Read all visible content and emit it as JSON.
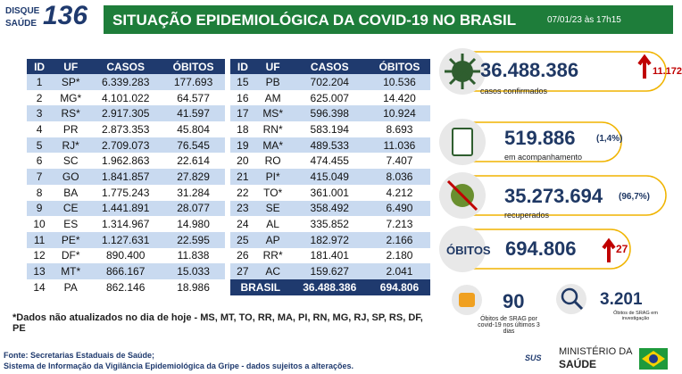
{
  "header": {
    "logo": {
      "line1": "DISQUE",
      "line2": "SAÚDE",
      "number": "136"
    },
    "title": "SITUAÇÃO EPIDEMIOLÓGICA DA COVID-19 NO BRASIL",
    "date": "07/01/23 às 17h15"
  },
  "table": {
    "headers": [
      "ID",
      "UF",
      "CASOS",
      "ÓBITOS"
    ],
    "rows_left": [
      [
        "1",
        "SP*",
        "6.339.283",
        "177.693"
      ],
      [
        "2",
        "MG*",
        "4.101.022",
        "64.577"
      ],
      [
        "3",
        "RS*",
        "2.917.305",
        "41.597"
      ],
      [
        "4",
        "PR",
        "2.873.353",
        "45.804"
      ],
      [
        "5",
        "RJ*",
        "2.709.073",
        "76.545"
      ],
      [
        "6",
        "SC",
        "1.962.863",
        "22.614"
      ],
      [
        "7",
        "GO",
        "1.841.857",
        "27.829"
      ],
      [
        "8",
        "BA",
        "1.775.243",
        "31.284"
      ],
      [
        "9",
        "CE",
        "1.441.891",
        "28.077"
      ],
      [
        "10",
        "ES",
        "1.314.967",
        "14.980"
      ],
      [
        "11",
        "PE*",
        "1.127.631",
        "22.595"
      ],
      [
        "12",
        "DF*",
        "890.400",
        "11.838"
      ],
      [
        "13",
        "MT*",
        "866.167",
        "15.033"
      ],
      [
        "14",
        "PA",
        "862.146",
        "18.986"
      ]
    ],
    "rows_right": [
      [
        "15",
        "PB",
        "702.204",
        "10.536"
      ],
      [
        "16",
        "AM",
        "625.007",
        "14.420"
      ],
      [
        "17",
        "MS*",
        "596.398",
        "10.924"
      ],
      [
        "18",
        "RN*",
        "583.194",
        "8.693"
      ],
      [
        "19",
        "MA*",
        "489.533",
        "11.036"
      ],
      [
        "20",
        "RO",
        "474.455",
        "7.407"
      ],
      [
        "21",
        "PI*",
        "415.049",
        "8.036"
      ],
      [
        "22",
        "TO*",
        "361.001",
        "4.212"
      ],
      [
        "23",
        "SE",
        "358.492",
        "6.490"
      ],
      [
        "24",
        "AL",
        "335.852",
        "7.213"
      ],
      [
        "25",
        "AP",
        "182.972",
        "2.166"
      ],
      [
        "26",
        "RR*",
        "181.401",
        "2.180"
      ],
      [
        "27",
        "AC",
        "159.627",
        "2.041"
      ]
    ],
    "total": [
      "BRASIL",
      "36.488.386",
      "694.806"
    ]
  },
  "stats": {
    "cases": {
      "value": "36.488.386",
      "new": "11.172",
      "label": "casos confirmados"
    },
    "monitoring": {
      "value": "519.886",
      "pct": "(1,4%)",
      "label": "em acompanhamento"
    },
    "recovered": {
      "value": "35.273.694",
      "pct": "(96,7%)",
      "label": "recuperados"
    },
    "deaths": {
      "label": "ÓBITOS",
      "value": "694.806",
      "new": "27"
    },
    "srag": {
      "value": "90",
      "label": "Óbitos de SRAG por covid-19 nos últimos 3 dias"
    },
    "investigation": {
      "value": "3.201",
      "label": "Óbitos de SRAG em investigação"
    }
  },
  "footnote": "*Dados não atualizados no dia de hoje - MS, MT, TO, RR, MA, PI, RN, MG, RJ, SP, RS, DF, PE",
  "sources": [
    "Fonte: Secretarias Estaduais de Saúde;",
    "Sistema de Informação da Vigilância Epidemiológica da Gripe - dados sujeitos a alterações."
  ],
  "footer": {
    "sus": "SUS",
    "ministry1": "MINISTÉRIO DA",
    "ministry2": "SAÚDE"
  }
}
